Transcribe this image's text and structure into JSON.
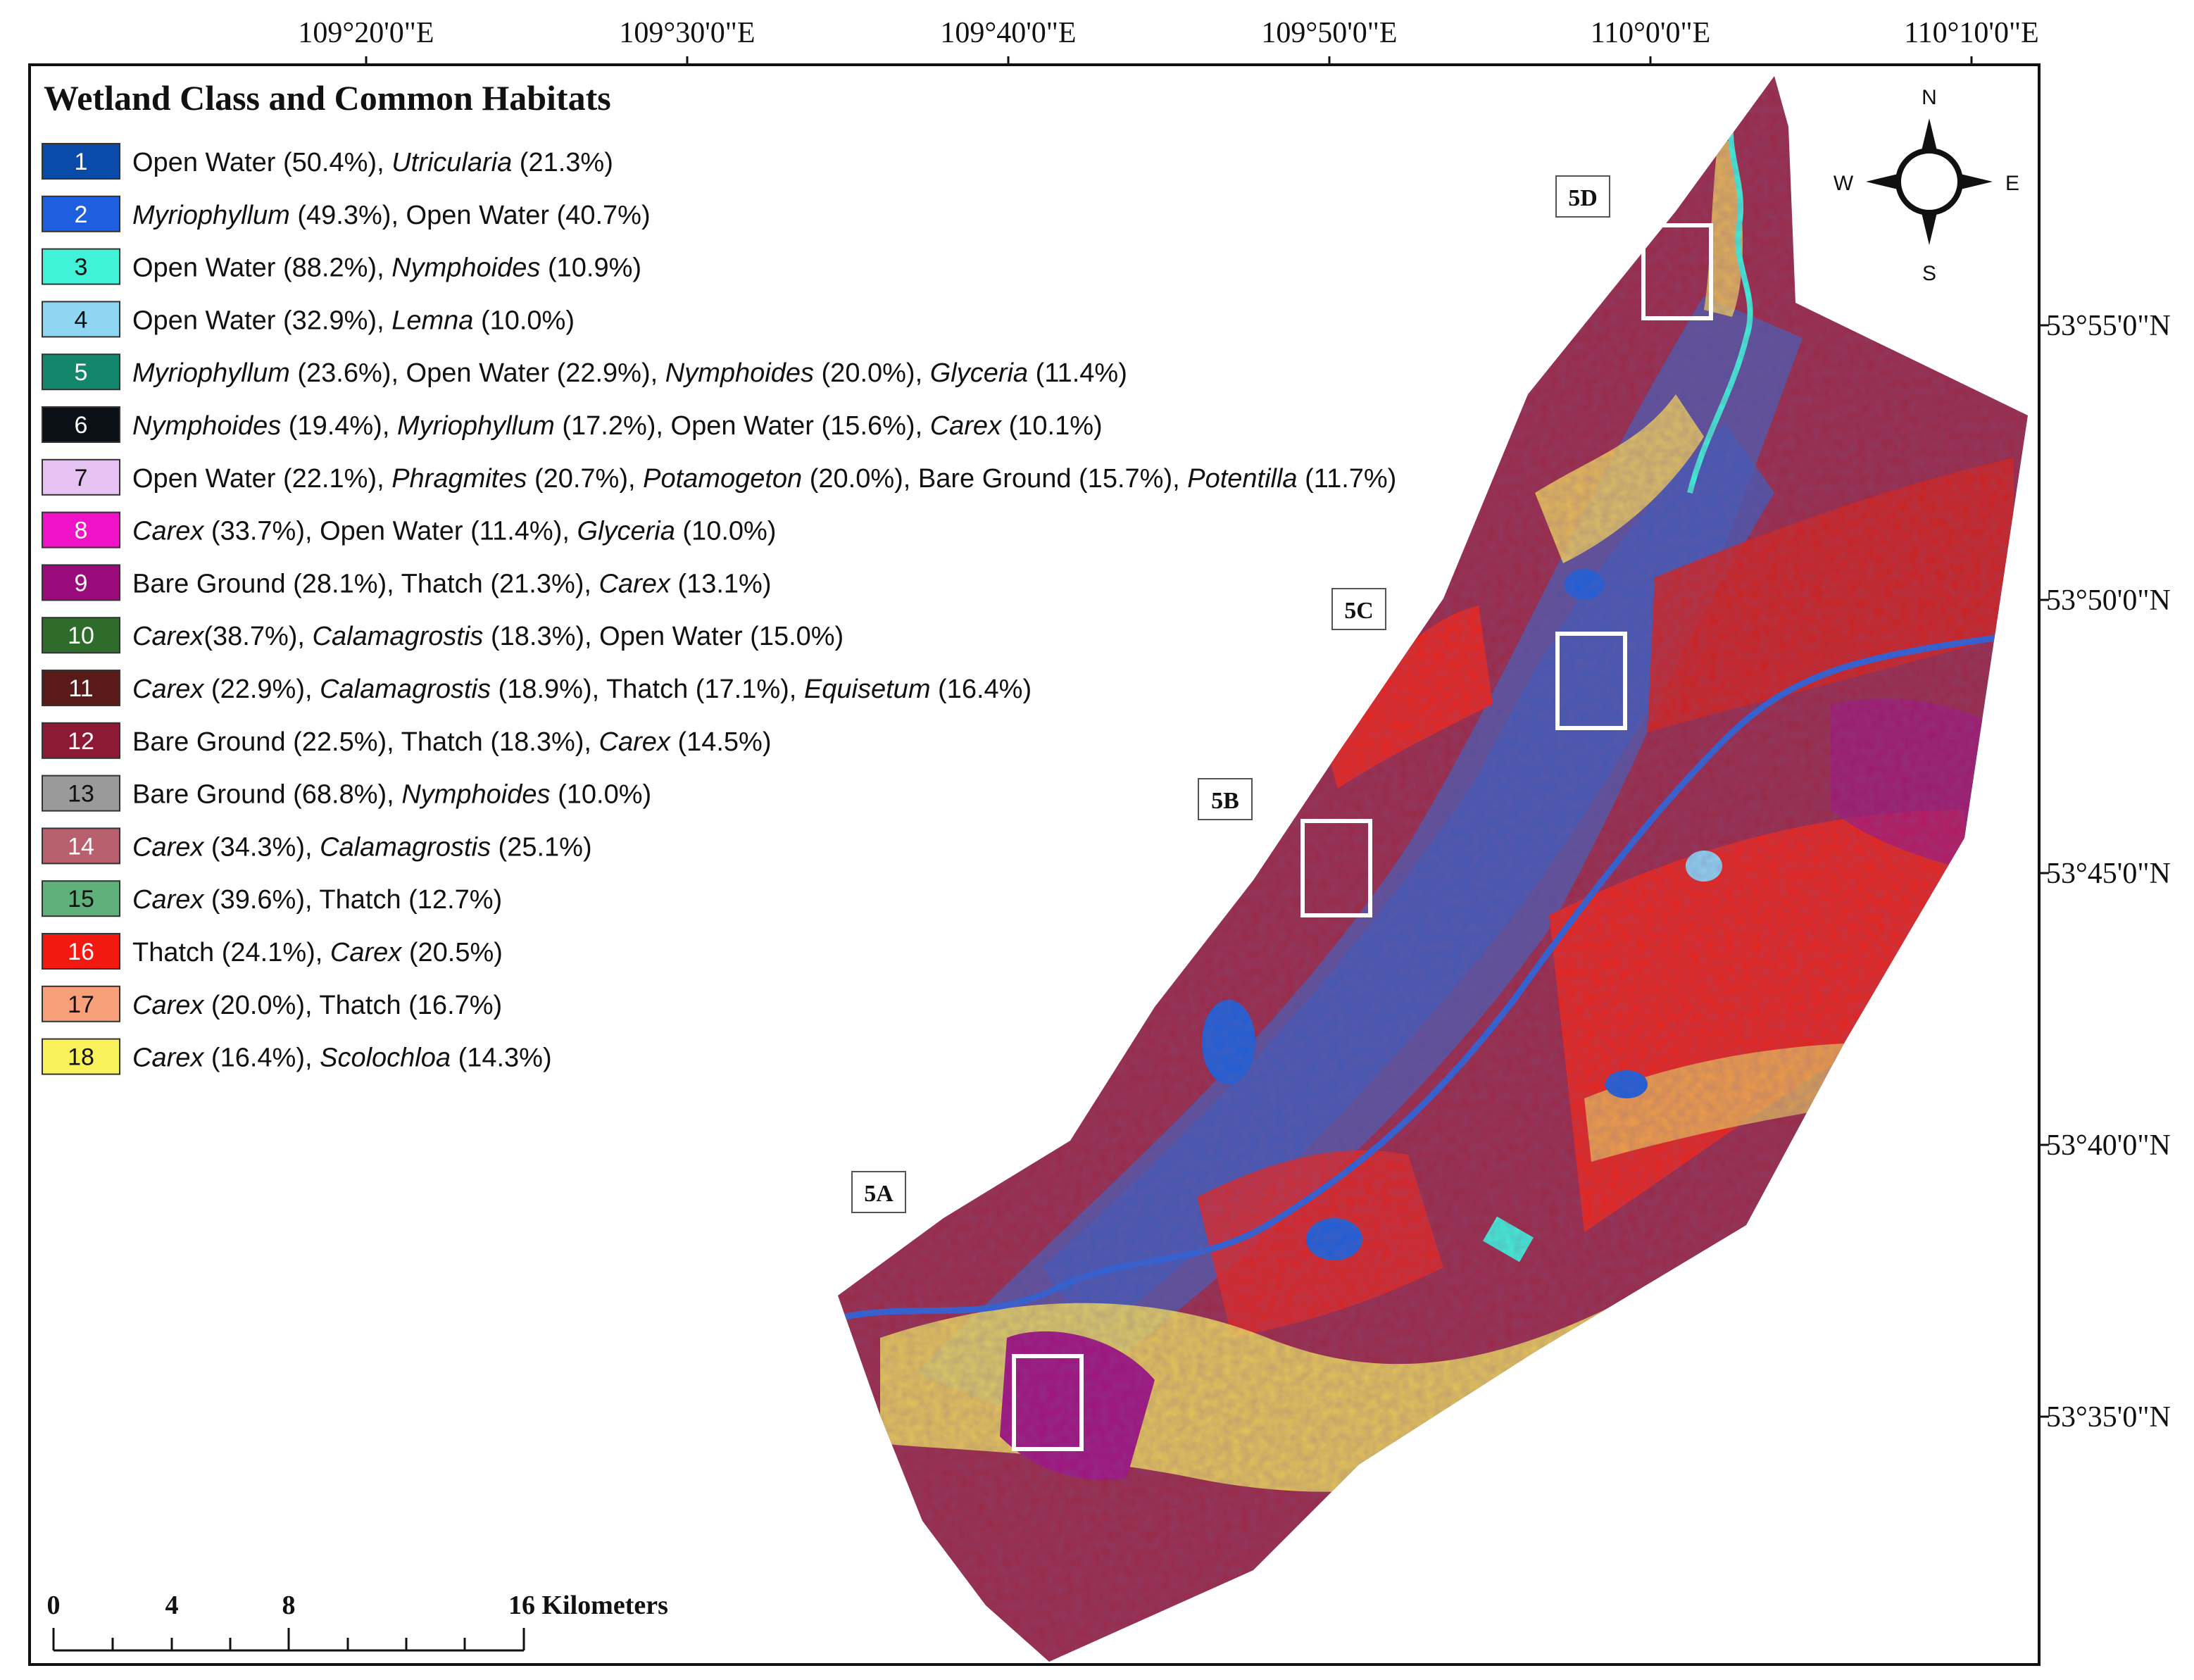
{
  "legend": {
    "title": "Wetland Class and Common Habitats",
    "items": [
      {
        "num": "1",
        "color": "#0a4aa8",
        "text": [
          [
            "Open Water (50.4%), ",
            false
          ],
          [
            "Utricularia",
            true
          ],
          [
            " (21.3%)",
            false
          ]
        ]
      },
      {
        "num": "2",
        "color": "#1e5fe0",
        "text": [
          [
            "Myriophyllum",
            true
          ],
          [
            " (49.3%), Open Water (40.7%)",
            false
          ]
        ]
      },
      {
        "num": "3",
        "color": "#3ff2d8",
        "text": [
          [
            "Open Water (88.2%), ",
            false
          ],
          [
            "Nymphoides",
            true
          ],
          [
            " (10.9%)",
            false
          ]
        ]
      },
      {
        "num": "4",
        "color": "#8fd6f2",
        "text": [
          [
            "Open Water (32.9%), ",
            false
          ],
          [
            "Lemna",
            true
          ],
          [
            " (10.0%)",
            false
          ]
        ]
      },
      {
        "num": "5",
        "color": "#13876b",
        "text": [
          [
            "Myriophyllum",
            true
          ],
          [
            " (23.6%), Open Water (22.9%), ",
            false
          ],
          [
            "Nymphoides",
            true
          ],
          [
            " (20.0%), ",
            false
          ],
          [
            "Glyceria",
            true
          ],
          [
            " (11.4%)",
            false
          ]
        ]
      },
      {
        "num": "6",
        "color": "#0b0f16",
        "text": [
          [
            "Nymphoides",
            true
          ],
          [
            " (19.4%), ",
            false
          ],
          [
            "Myriophyllum",
            true
          ],
          [
            " (17.2%), Open Water (15.6%), ",
            false
          ],
          [
            "Carex",
            true
          ],
          [
            " (10.1%)",
            false
          ]
        ]
      },
      {
        "num": "7",
        "color": "#e6c2f2",
        "text": [
          [
            "Open Water (22.1%), ",
            false
          ],
          [
            "Phragmites",
            true
          ],
          [
            " (20.7%), ",
            false
          ],
          [
            "Potamogeton",
            true
          ],
          [
            " (20.0%), Bare Ground (15.7%), ",
            false
          ],
          [
            "Potentilla",
            true
          ],
          [
            " (11.7%)",
            false
          ]
        ]
      },
      {
        "num": "8",
        "color": "#f012c6",
        "text": [
          [
            "Carex",
            true
          ],
          [
            " (33.7%), Open Water (11.4%), ",
            false
          ],
          [
            "Glyceria",
            true
          ],
          [
            " (10.0%)",
            false
          ]
        ]
      },
      {
        "num": "9",
        "color": "#9a0b7c",
        "text": [
          [
            "Bare Ground (28.1%), Thatch (21.3%), ",
            false
          ],
          [
            "Carex",
            true
          ],
          [
            " (13.1%)",
            false
          ]
        ]
      },
      {
        "num": "10",
        "color": "#2f6b2b",
        "text": [
          [
            "Carex",
            true
          ],
          [
            "(38.7%), ",
            false
          ],
          [
            "Calamagrostis",
            true
          ],
          [
            " (18.3%), Open Water (15.0%)",
            false
          ]
        ]
      },
      {
        "num": "11",
        "color": "#5a1a1a",
        "text": [
          [
            "Carex",
            true
          ],
          [
            " (22.9%), ",
            false
          ],
          [
            "Calamagrostis",
            true
          ],
          [
            " (18.9%), Thatch (17.1%), ",
            false
          ],
          [
            "Equisetum",
            true
          ],
          [
            " (16.4%)",
            false
          ]
        ]
      },
      {
        "num": "12",
        "color": "#8c1a35",
        "text": [
          [
            "Bare Ground (22.5%), Thatch (18.3%), ",
            false
          ],
          [
            "Carex",
            true
          ],
          [
            " (14.5%)",
            false
          ]
        ]
      },
      {
        "num": "13",
        "color": "#9a9a9a",
        "text": [
          [
            "Bare Ground (68.8%), ",
            false
          ],
          [
            "Nymphoides",
            true
          ],
          [
            " (10.0%)",
            false
          ]
        ]
      },
      {
        "num": "14",
        "color": "#b8606e",
        "text": [
          [
            "Carex",
            true
          ],
          [
            " (34.3%), ",
            false
          ],
          [
            "Calamagrostis",
            true
          ],
          [
            " (25.1%)",
            false
          ]
        ]
      },
      {
        "num": "15",
        "color": "#5fb07a",
        "text": [
          [
            "Carex",
            true
          ],
          [
            " (39.6%), Thatch (12.7%)",
            false
          ]
        ]
      },
      {
        "num": "16",
        "color": "#f21a10",
        "text": [
          [
            "Thatch (24.1%), ",
            false
          ],
          [
            "Carex",
            true
          ],
          [
            " (20.5%)",
            false
          ]
        ]
      },
      {
        "num": "17",
        "color": "#f7a07a",
        "text": [
          [
            "Carex",
            true
          ],
          [
            " (20.0%), Thatch (16.7%)",
            false
          ]
        ]
      },
      {
        "num": "18",
        "color": "#faf25a",
        "text": [
          [
            "Carex",
            true
          ],
          [
            " (16.4%), ",
            false
          ],
          [
            "Scolochloa",
            true
          ],
          [
            " (14.3%)",
            false
          ]
        ]
      }
    ]
  },
  "longitude_labels": [
    "109°20'0\"E",
    "109°30'0\"E",
    "109°40'0\"E",
    "109°50'0\"E",
    "110°0'0\"E",
    "110°10'0\"E"
  ],
  "latitude_labels": [
    "53°55'0\"N",
    "53°50'0\"N",
    "53°45'0\"N",
    "53°40'0\"N",
    "53°35'0\"N"
  ],
  "inset_labels": [
    "5A",
    "5B",
    "5C",
    "5D"
  ],
  "compass": {
    "n": "N",
    "s": "S",
    "e": "E",
    "w": "W"
  },
  "scale_bar": {
    "ticks": [
      "0",
      "4",
      "8"
    ],
    "end_label": "16 Kilometers"
  }
}
